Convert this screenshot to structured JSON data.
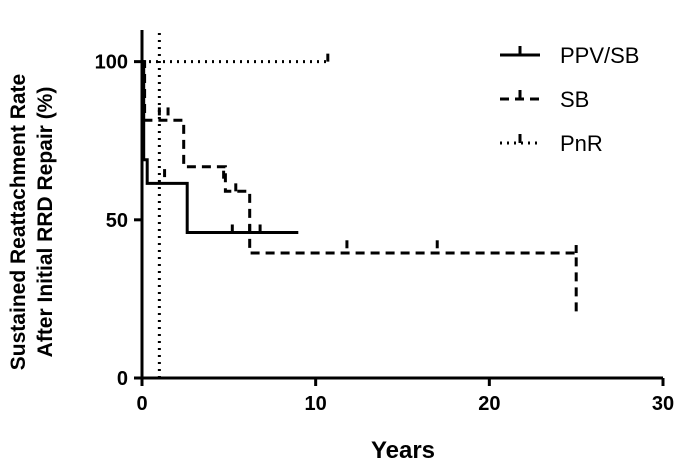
{
  "chart_data": {
    "type": "line",
    "ylabel_line1": "Sustained Reattachment Rate",
    "ylabel_line2": "After Initial RRD Repair (%)",
    "xlabel": "Years",
    "xlim": [
      0,
      30
    ],
    "ylim": [
      0,
      110
    ],
    "x_ticks": [
      0,
      10,
      20,
      30
    ],
    "y_ticks": [
      0,
      50,
      100
    ],
    "x_tick_labels": [
      "0",
      "10",
      "20",
      "30"
    ],
    "y_tick_labels": [
      "0",
      "50",
      "100"
    ],
    "grid": false,
    "legend_position": "top-right",
    "series": [
      {
        "name": "PPV/SB",
        "line_style": "solid",
        "color": "#000000",
        "step_x": [
          0,
          0.1,
          0.1,
          0.3,
          0.3,
          2.6,
          2.6,
          9.0
        ],
        "step_y": [
          100,
          100,
          69,
          69,
          61.5,
          61.5,
          46,
          46
        ],
        "censored": [
          [
            1.3,
            63.5
          ],
          [
            5.2,
            46
          ],
          [
            6.2,
            46
          ],
          [
            6.8,
            46
          ]
        ]
      },
      {
        "name": "SB",
        "line_style": "dashed",
        "color": "#000000",
        "step_x": [
          0,
          0.15,
          0.15,
          2.4,
          2.4,
          4.8,
          4.8,
          6.2,
          6.2,
          25.0,
          25.0
        ],
        "step_y": [
          100,
          100,
          81.5,
          81.5,
          66.8,
          66.8,
          59,
          59,
          39.5,
          39.5,
          20
        ],
        "censored": [
          [
            1.0,
            83
          ],
          [
            1.5,
            83
          ],
          [
            4.7,
            63
          ],
          [
            5.4,
            59
          ],
          [
            11.8,
            41
          ],
          [
            17.0,
            41
          ],
          [
            25.0,
            39.5
          ]
        ]
      },
      {
        "name": "PnR",
        "line_style": "dotted",
        "color": "#000000",
        "step_x": [
          0,
          10.7
        ],
        "step_y": [
          100,
          100
        ],
        "censored": [
          [
            10.7,
            100
          ]
        ]
      }
    ],
    "reference_lines": [
      {
        "axis": "x",
        "value": 1.0,
        "style": "dotted"
      }
    ]
  }
}
